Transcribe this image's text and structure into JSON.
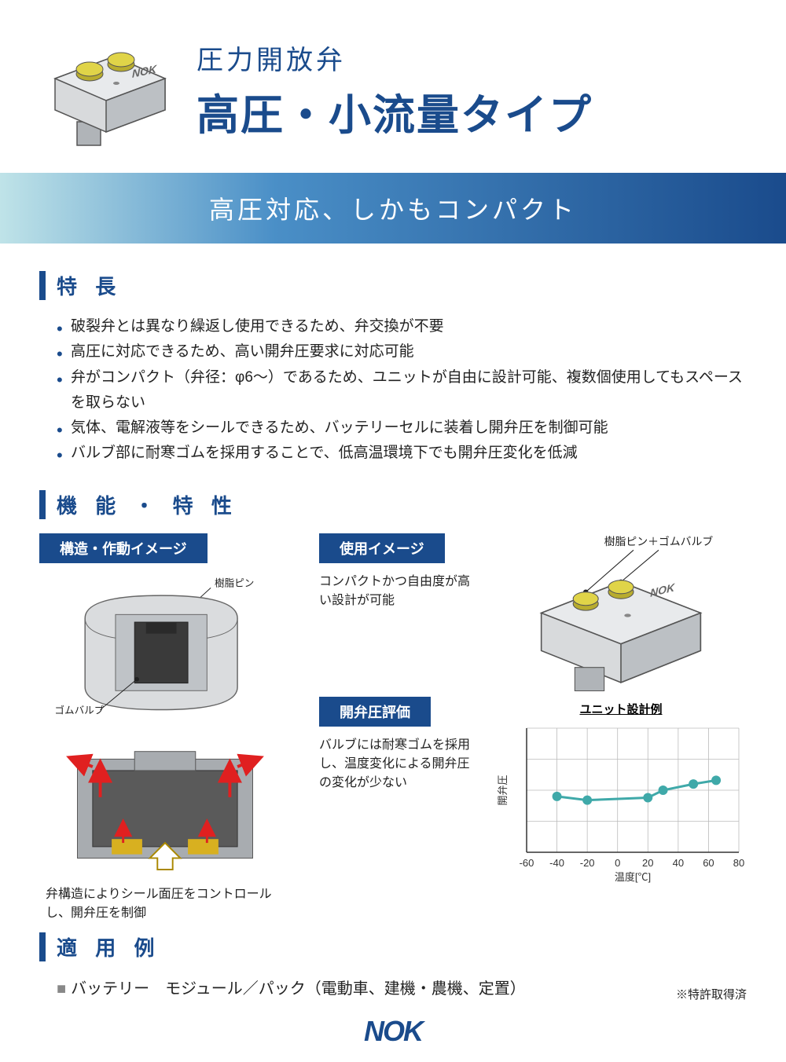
{
  "header": {
    "subtitle": "圧力開放弁",
    "title": "高圧・小流量タイプ",
    "tagline": "高圧対応、しかもコンパクト"
  },
  "sections": {
    "features_heading": "特 長",
    "functions_heading": "機 能 ・ 特 性",
    "applications_heading": "適 用 例"
  },
  "features": [
    "破裂弁とは異なり繰返し使用できるため、弁交換が不要",
    "高圧に対応できるため、高い開弁圧要求に対応可能",
    "弁がコンパクト（弁径：φ6〜）であるため、ユニットが自由に設計可能、複数個使用してもスペースを取らない",
    "気体、電解液等をシールできるため、バッテリーセルに装着し開弁圧を制御可能",
    "バルブ部に耐寒ゴムを採用することで、低高温環境下でも開弁圧変化を低減"
  ],
  "badges": {
    "structure": "構造・作動イメージ",
    "usage": "使用イメージ",
    "evaluation": "開弁圧評価"
  },
  "annotations": {
    "resin_pin": "樹脂ピン",
    "rubber_valve": "ゴムバルブ",
    "pin_valve_combo": "樹脂ピン＋ゴムバルブ",
    "unit_example": "ユニット設計例"
  },
  "captions": {
    "structure_caption": "弁構造によりシール面圧をコントロールし、開弁圧を制御",
    "usage_caption": "コンパクトかつ自由度が高い設計が可能",
    "evaluation_caption": "バルブには耐寒ゴムを採用し、温度変化による開弁圧の変化が少ない"
  },
  "chart": {
    "type": "line",
    "xlabel": "温度[℃]",
    "ylabel": "開弁圧",
    "xlim": [
      -60,
      80
    ],
    "xtick_step": 20,
    "xticks": [
      -60,
      -40,
      -20,
      0,
      20,
      40,
      60,
      80
    ],
    "data_x": [
      -40,
      -20,
      20,
      30,
      50,
      65
    ],
    "data_y": [
      0.45,
      0.42,
      0.44,
      0.5,
      0.55,
      0.58
    ],
    "line_color": "#3fa9a9",
    "marker_color": "#3fa9a9",
    "marker_size": 6,
    "line_width": 3,
    "grid_color": "#bbbbbb",
    "axis_color": "#333333",
    "background_color": "#ffffff",
    "label_fontsize": 13
  },
  "applications": {
    "line": "バッテリー　モジュール／パック（電動車、建機・農機、定置）"
  },
  "footer": {
    "patent": "※特許取得済",
    "logo": "NOK"
  },
  "colors": {
    "brand_blue": "#1a4b8c",
    "gradient_light": "#bfe3e8",
    "gradient_mid": "#4a8fc7",
    "cap_yellow": "#d4c73a",
    "body_gray": "#c8cacc",
    "body_gray_dark": "#9ea2a6",
    "cutaway_dark": "#4a4a4a",
    "arrow_red": "#e02020",
    "arrow_yellow": "#d8b020"
  }
}
